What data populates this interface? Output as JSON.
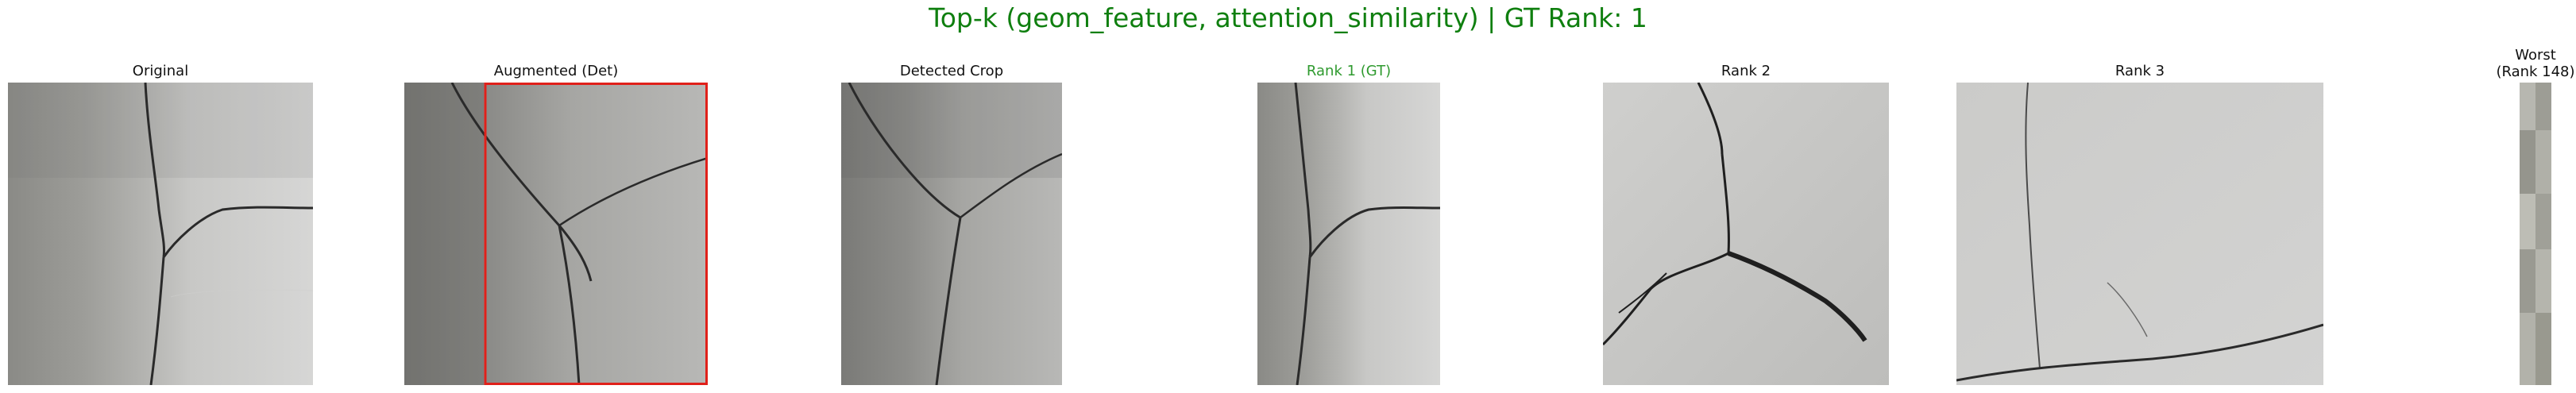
{
  "figure": {
    "title": "Top-k (geom_feature, attention_similarity) | GT Rank: 1",
    "title_color": "#0f7f0f",
    "gt_color": "#2f9a2f",
    "box_color": "#e0201a"
  },
  "panels": {
    "original": {
      "title": "Original",
      "image": "concrete-crack-photo"
    },
    "augmented": {
      "title": "Augmented (Det)",
      "image": "concrete-crack-photo-with-detection-box"
    },
    "detected": {
      "title": "Detected Crop",
      "image": "cropped-concrete-crack-photo"
    },
    "rank1": {
      "title": "Rank 1 (GT)",
      "image": "concrete-crack-photo"
    },
    "rank2": {
      "title": "Rank 2",
      "image": "branching-crack-photo"
    },
    "rank3": {
      "title": "Rank 3",
      "image": "vertical-crack-photo"
    },
    "worst": {
      "title_line1": "Worst",
      "title_line2": "(Rank 148)",
      "image": "grey-texture-strip"
    }
  }
}
